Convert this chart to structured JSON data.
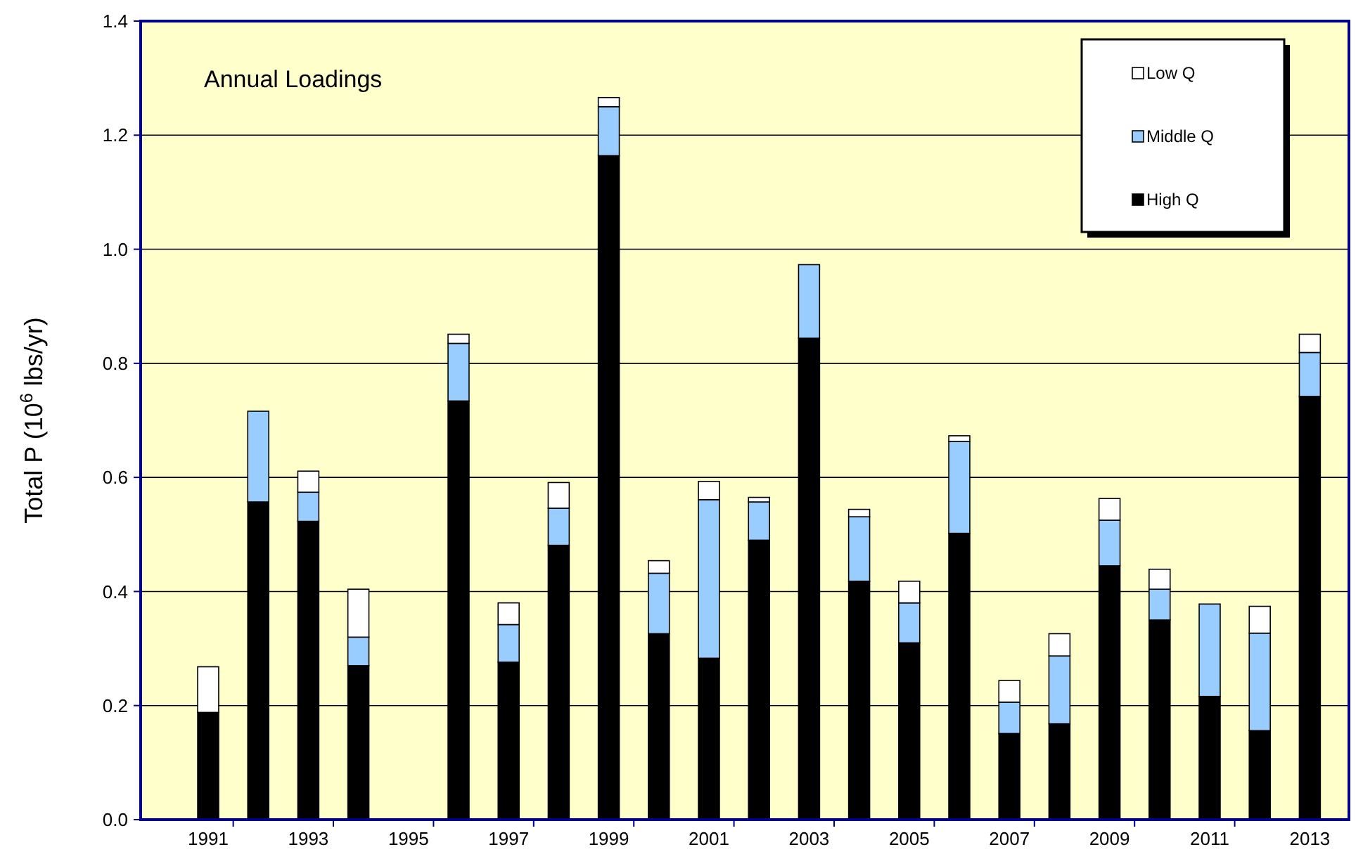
{
  "chart_data": {
    "type": "bar",
    "title": "Annual Loadings",
    "ylabel": "Total P (10$^{6}$ lbs/yr)",
    "categories": [
      "1991",
      null,
      "1993",
      null,
      "1995",
      null,
      "1997",
      null,
      "1999",
      null,
      "2001",
      null,
      "2003",
      null,
      "2005",
      null,
      "2007",
      null,
      "2009",
      null,
      "2011",
      null,
      "2013"
    ],
    "stacked": true,
    "ylim": [
      0,
      1.4
    ],
    "yticks": [
      {
        "value": 0,
        "label": "0.0"
      },
      {
        "value": 0.2,
        "label": "0.2"
      },
      {
        "value": 0.4,
        "label": "0.4"
      },
      {
        "value": 0.6,
        "label": "0.6"
      },
      {
        "value": 0.8,
        "label": "0.8"
      },
      {
        "value": 1,
        "label": "1.0"
      },
      {
        "value": 1.2,
        "label": "1.2"
      },
      {
        "value": 1.4,
        "label": "1.4"
      }
    ],
    "grid": "y",
    "legend": "top right",
    "series": [
      {
        "name": "High Q",
        "color": "#000000",
        "values": [
          0.188,
          0.557,
          0.523,
          0.27,
          0,
          0.734,
          0.276,
          0.481,
          1.164,
          0.326,
          0.283,
          0.49,
          0.844,
          0.418,
          0.31,
          0.502,
          0.151,
          0.168,
          0.445,
          0.35,
          0.216,
          0.156,
          0.742
        ]
      },
      {
        "name": "Middle Q",
        "color": "#99ccff",
        "values": [
          0,
          0.159,
          0.051,
          0.05,
          0,
          0.101,
          0.066,
          0.065,
          0.086,
          0.106,
          0.278,
          0.067,
          0.129,
          0.113,
          0.07,
          0.161,
          0.055,
          0.119,
          0.08,
          0.054,
          0.162,
          0.171,
          0.077
        ]
      },
      {
        "name": "Low Q",
        "color": "#ffffff",
        "values": [
          0.08,
          0,
          0.037,
          0.084,
          0,
          0.016,
          0.038,
          0.045,
          0.016,
          0.022,
          0.032,
          0.008,
          0,
          0.013,
          0.038,
          0.01,
          0.038,
          0.039,
          0.038,
          0.035,
          0,
          0.047,
          0.032
        ]
      }
    ]
  }
}
